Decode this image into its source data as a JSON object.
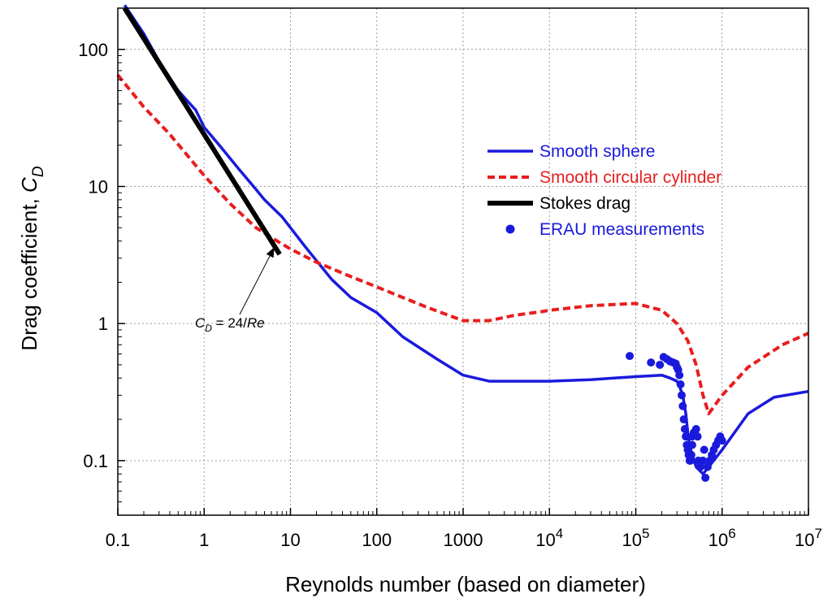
{
  "chart_data": {
    "type": "line",
    "title": "",
    "xlabel": "Reynolds number (based on diameter)",
    "ylabel": {
      "main": "Drag coefficient, ",
      "symbol": "C",
      "subscript": "D"
    },
    "xscale": "log",
    "yscale": "log",
    "xlim": [
      0.1,
      10000000
    ],
    "ylim": [
      0.04,
      200
    ],
    "grid": true,
    "legend_position": "center-right",
    "x_ticks": [
      {
        "value": 0.1,
        "label": "0.1"
      },
      {
        "value": 1,
        "label": "1"
      },
      {
        "value": 10,
        "label": "10"
      },
      {
        "value": 100,
        "label": "100"
      },
      {
        "value": 1000,
        "label": "1000"
      },
      {
        "value": 10000,
        "base": "10",
        "exp": "4"
      },
      {
        "value": 100000,
        "base": "10",
        "exp": "5"
      },
      {
        "value": 1000000,
        "base": "10",
        "exp": "6"
      },
      {
        "value": 10000000,
        "base": "10",
        "exp": "7"
      }
    ],
    "y_ticks": [
      {
        "value": 0.1,
        "label": "0.1"
      },
      {
        "value": 1,
        "label": "1"
      },
      {
        "value": 10,
        "label": "10"
      },
      {
        "value": 100,
        "label": "100"
      }
    ],
    "series": [
      {
        "name": "Smooth sphere",
        "style": "solid",
        "color": "#1a1adc",
        "x": [
          0.12,
          0.2,
          0.3,
          0.5,
          0.8,
          1.0,
          1.5,
          2.5,
          4,
          5,
          8,
          15,
          30,
          50,
          100,
          200,
          500,
          1000,
          2000,
          5000,
          10000,
          30000,
          100000,
          200000,
          250000,
          300000,
          320000,
          350000,
          380000,
          400000,
          420000,
          450000,
          500000,
          600000,
          700000,
          1000000,
          2000000,
          4000000,
          10000000
        ],
        "y": [
          210,
          130,
          82,
          50,
          36,
          27,
          20,
          13.5,
          9.5,
          8.0,
          6.0,
          3.6,
          2.1,
          1.55,
          1.2,
          0.8,
          0.55,
          0.42,
          0.38,
          0.38,
          0.38,
          0.39,
          0.41,
          0.42,
          0.4,
          0.38,
          0.35,
          0.3,
          0.22,
          0.16,
          0.13,
          0.11,
          0.09,
          0.08,
          0.09,
          0.12,
          0.22,
          0.29,
          0.32
        ]
      },
      {
        "name": "Smooth circular cylinder",
        "style": "dashed",
        "color": "#e81e1e",
        "x": [
          0.1,
          0.2,
          0.4,
          1,
          2,
          4,
          7,
          10,
          20,
          50,
          100,
          200,
          400,
          1000,
          2000,
          4000,
          8000,
          10000,
          30000,
          60000,
          100000,
          200000,
          300000,
          400000,
          500000,
          600000,
          700000,
          1000000,
          2000000,
          5000000,
          10000000
        ],
        "y": [
          65,
          38,
          24,
          12,
          7.5,
          5,
          4.0,
          3.5,
          2.8,
          2.2,
          1.85,
          1.55,
          1.3,
          1.05,
          1.05,
          1.15,
          1.22,
          1.25,
          1.35,
          1.38,
          1.4,
          1.25,
          1.0,
          0.75,
          0.5,
          0.3,
          0.22,
          0.3,
          0.48,
          0.7,
          0.85
        ]
      },
      {
        "name": "Stokes drag",
        "style": "thick",
        "color": "#000000",
        "formula": "24/Re",
        "x": [
          0.12,
          7.5
        ],
        "y": [
          200,
          3.2
        ]
      },
      {
        "name": "ERAU measurements",
        "style": "markers",
        "color": "#1a1adc",
        "x": [
          85000,
          150000,
          190000,
          210000,
          230000,
          250000,
          270000,
          290000,
          300000,
          310000,
          320000,
          330000,
          340000,
          350000,
          360000,
          370000,
          380000,
          390000,
          400000,
          410000,
          420000,
          430000,
          440000,
          450000,
          470000,
          500000,
          530000,
          560000,
          600000,
          640000,
          680000,
          720000,
          760000,
          800000,
          850000,
          900000,
          950000,
          1000000,
          450000,
          480000,
          520000,
          620000
        ],
        "y": [
          0.58,
          0.52,
          0.5,
          0.57,
          0.55,
          0.53,
          0.52,
          0.51,
          0.48,
          0.46,
          0.42,
          0.36,
          0.3,
          0.25,
          0.2,
          0.17,
          0.15,
          0.13,
          0.12,
          0.11,
          0.1,
          0.1,
          0.11,
          0.13,
          0.16,
          0.17,
          0.1,
          0.09,
          0.1,
          0.075,
          0.09,
          0.1,
          0.11,
          0.12,
          0.13,
          0.14,
          0.15,
          0.14,
          0.15,
          0.16,
          0.15,
          0.12
        ]
      }
    ],
    "legend": [
      {
        "label": "Smooth sphere",
        "color": "#1a1adc"
      },
      {
        "label": "Smooth circular cylinder",
        "color": "#e81e1e"
      },
      {
        "label": "Stokes drag",
        "color": "#000000"
      },
      {
        "label": "ERAU measurements",
        "color": "#1a1adc"
      }
    ],
    "annotation": {
      "symbol": "C",
      "subscript": "D",
      "rest": " = 24/",
      "italic": "Re",
      "target_x": 6.5,
      "target_y": 3.6
    }
  }
}
